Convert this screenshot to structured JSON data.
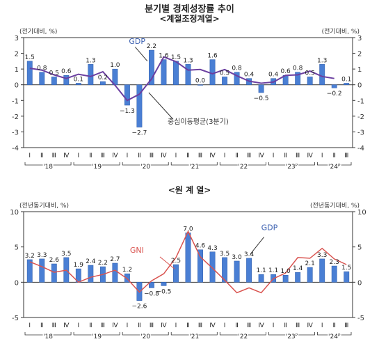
{
  "header": {
    "title": "분기별 경제성장률 추이",
    "subtitle": "<계절조정계열>",
    "subtitle2": "<원 계 열>"
  },
  "chart_data": [
    {
      "type": "bar",
      "unit_left": "(전기대비, %)",
      "unit_right": "(전기대비, %)",
      "ylim": [
        -4,
        3
      ],
      "yticks": [
        -4,
        -3,
        -2,
        -1,
        0,
        1,
        2,
        3
      ],
      "quarter_labels": [
        "Ⅰ",
        "Ⅱ",
        "Ⅲ",
        "Ⅳ",
        "Ⅰ",
        "Ⅱ",
        "Ⅲ",
        "Ⅳ",
        "Ⅰ",
        "Ⅱ",
        "Ⅲ",
        "Ⅳ",
        "Ⅰ",
        "Ⅱ",
        "Ⅲ",
        "Ⅳ",
        "Ⅰ",
        "Ⅱ",
        "Ⅲ",
        "Ⅳ",
        "Ⅰ",
        "Ⅱ",
        "Ⅲ",
        "Ⅳ",
        "Ⅰ",
        "Ⅱ",
        "Ⅲ"
      ],
      "year_labels": [
        "'18",
        "'19",
        "'20",
        "'21",
        "'22",
        "'23ᴾ",
        "'24ᴾ"
      ],
      "series": [
        {
          "name": "GDP",
          "kind": "bar",
          "color": "#4a7fd4",
          "values": [
            1.5,
            0.8,
            0.5,
            0.6,
            0.1,
            1.3,
            0.2,
            1.0,
            -1.3,
            -2.7,
            2.2,
            1.6,
            1.5,
            1.3,
            0.0,
            1.6,
            0.5,
            0.8,
            0.4,
            -0.5,
            0.4,
            0.6,
            0.8,
            0.5,
            1.3,
            -0.2,
            0.1
          ],
          "labels": [
            "1.5",
            "0.8",
            "0.5",
            "0.6",
            "0.1",
            "1.3",
            "0.2",
            "1.0",
            "-1.3",
            "-2.7",
            "2.2",
            "1.6",
            "1.5",
            "1.3",
            "0.0",
            "1.6",
            "0.5",
            "0.8",
            "0.4",
            "-0.5",
            "0.4",
            "0.6",
            "0.8",
            "0.5",
            "1.3",
            "-0.2",
            "0.1"
          ]
        },
        {
          "name": "중심이동평균(3분기)",
          "kind": "line",
          "color": "#6b3fa0",
          "values": [
            1.05,
            0.93,
            0.63,
            0.4,
            0.67,
            0.53,
            0.83,
            -0.03,
            -1.0,
            -0.6,
            0.37,
            1.77,
            1.47,
            0.93,
            0.97,
            0.7,
            0.97,
            0.57,
            0.23,
            0.1,
            0.17,
            0.6,
            0.63,
            0.87,
            0.53,
            0.4,
            null
          ]
        }
      ],
      "annotations": [
        {
          "text": "GDP",
          "color": "#3a5fb0"
        },
        {
          "text": "중심이동평균(3분기)",
          "color": "#333333"
        }
      ]
    },
    {
      "type": "bar",
      "unit_left": "(전년동기대비, %)",
      "unit_right": "(전년동기대비, %)",
      "ylim": [
        -5,
        10
      ],
      "yticks": [
        -5,
        0,
        5,
        10
      ],
      "quarter_labels": [
        "Ⅰ",
        "Ⅱ",
        "Ⅲ",
        "Ⅳ",
        "Ⅰ",
        "Ⅱ",
        "Ⅲ",
        "Ⅳ",
        "Ⅰ",
        "Ⅱ",
        "Ⅲ",
        "Ⅳ",
        "Ⅰ",
        "Ⅱ",
        "Ⅲ",
        "Ⅳ",
        "Ⅰ",
        "Ⅱ",
        "Ⅲ",
        "Ⅳ",
        "Ⅰ",
        "Ⅱ",
        "Ⅲ",
        "Ⅳ",
        "Ⅰ",
        "Ⅱ",
        "Ⅲ"
      ],
      "year_labels": [
        "'18",
        "'19",
        "'20",
        "'21",
        "'22",
        "'23ᴾ",
        "'24ᴾ"
      ],
      "series": [
        {
          "name": "GDP",
          "kind": "bar",
          "color": "#4a7fd4",
          "values": [
            3.2,
            3.3,
            2.6,
            3.5,
            1.9,
            2.4,
            2.2,
            2.7,
            1.2,
            -2.6,
            -0.8,
            -0.5,
            2.5,
            7.0,
            4.6,
            4.3,
            3.5,
            3.0,
            3.4,
            1.1,
            1.1,
            1.0,
            1.4,
            2.1,
            3.3,
            2.3,
            1.5
          ],
          "labels": [
            "3.2",
            "3.3",
            "2.6",
            "3.5",
            "1.9",
            "2.4",
            "2.2",
            "2.7",
            "1.2",
            "-2.6",
            "-0.8",
            "-0.5",
            "2.5",
            "7.0",
            "4.6",
            "4.3",
            "3.5",
            "3.0",
            "3.4",
            "1.1",
            "1.1",
            "1.0",
            "1.4",
            "2.1",
            "3.3",
            "2.3",
            "1.5"
          ]
        },
        {
          "name": "GNI",
          "kind": "line",
          "color": "#d9534f",
          "values": [
            2.9,
            2.2,
            1.4,
            1.7,
            0.0,
            0.7,
            1.1,
            1.7,
            0.5,
            -1.4,
            0.2,
            1.2,
            3.5,
            7.2,
            3.6,
            2.0,
            0.3,
            -1.5,
            -0.8,
            -1.5,
            0.5,
            1.3,
            3.5,
            3.4,
            4.8,
            3.3,
            2.5
          ]
        }
      ],
      "annotations": [
        {
          "text": "GDP",
          "color": "#3a5fb0"
        },
        {
          "text": "GNI",
          "color": "#d9534f"
        }
      ]
    }
  ]
}
